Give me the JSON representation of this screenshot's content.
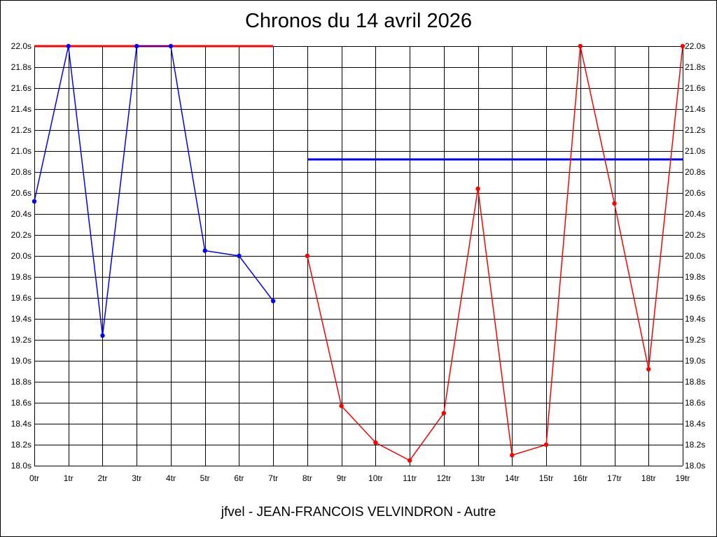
{
  "chart_data": {
    "type": "line",
    "title": "Chronos du 14 avril 2026",
    "footer": "jfvel - JEAN-FRANCOIS VELVINDRON - Autre",
    "categories": [
      "0tr",
      "1tr",
      "2tr",
      "3tr",
      "4tr",
      "5tr",
      "6tr",
      "7tr",
      "8tr",
      "9tr",
      "10tr",
      "11tr",
      "12tr",
      "13tr",
      "14tr",
      "15tr",
      "16tr",
      "17tr",
      "18tr",
      "19tr"
    ],
    "y_tick_labels": [
      "18.0s",
      "18.2s",
      "18.4s",
      "18.6s",
      "18.8s",
      "19.0s",
      "19.2s",
      "19.4s",
      "19.6s",
      "19.8s",
      "20.0s",
      "20.2s",
      "20.4s",
      "20.6s",
      "20.8s",
      "21.0s",
      "21.2s",
      "21.4s",
      "21.6s",
      "21.8s",
      "22.0s"
    ],
    "ylim": [
      18.0,
      22.0
    ],
    "y_step": 0.2,
    "grid": true,
    "series": [
      {
        "color": "#0000ff",
        "x": [
          0,
          1,
          2,
          3,
          4,
          5,
          6,
          7
        ],
        "values": [
          20.52,
          22.0,
          19.24,
          22.0,
          22.0,
          20.05,
          20.0,
          19.57
        ]
      },
      {
        "color": "#ff0000",
        "x": [
          8,
          9,
          10,
          11,
          12,
          13,
          14,
          15,
          16,
          17,
          18,
          19
        ],
        "values": [
          20.0,
          18.57,
          18.22,
          18.05,
          18.5,
          20.64,
          18.1,
          18.2,
          22.0,
          20.5,
          18.92,
          22.0
        ]
      }
    ],
    "reference_lines": [
      {
        "color": "#ff0000",
        "y": 22.0,
        "x_from": 0,
        "x_to": 7
      },
      {
        "color": "#0000ff",
        "y": 20.92,
        "x_from": 8,
        "x_to": 19
      }
    ]
  }
}
